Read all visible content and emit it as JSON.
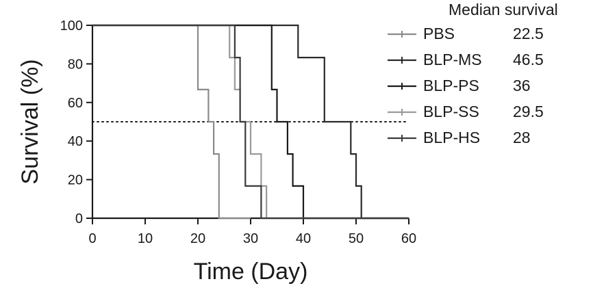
{
  "chart_data": {
    "type": "line",
    "xlabel": "Time (Day)",
    "ylabel": "Survival (%)",
    "xlim": [
      0,
      60
    ],
    "ylim": [
      0,
      100
    ],
    "xticks": [
      0,
      10,
      20,
      30,
      40,
      50,
      60
    ],
    "yticks": [
      0,
      20,
      40,
      60,
      80,
      100
    ],
    "xtick_labels": [
      "0",
      "10",
      "20",
      "30",
      "40",
      "50",
      "60"
    ],
    "ytick_labels": [
      "0",
      "20",
      "40",
      "60",
      "80",
      "100"
    ],
    "reference_line": {
      "y": 50,
      "style": "dotted",
      "x_end": 60
    },
    "legend": {
      "title": "Median survival",
      "placement": "right"
    },
    "series": [
      {
        "name": "PBS",
        "median": "22.5",
        "color": "#8a8a8a",
        "steps": [
          [
            0,
            100
          ],
          [
            20,
            100
          ],
          [
            20,
            66.7
          ],
          [
            22,
            66.7
          ],
          [
            22,
            50
          ],
          [
            23,
            50
          ],
          [
            23,
            33.3
          ],
          [
            24,
            33.3
          ],
          [
            24,
            0
          ],
          [
            30,
            0
          ]
        ]
      },
      {
        "name": "BLP-MS",
        "median": "46.5",
        "color": "#2a2a2a",
        "steps": [
          [
            0,
            100
          ],
          [
            39,
            100
          ],
          [
            39,
            83.3
          ],
          [
            44,
            83.3
          ],
          [
            44,
            50
          ],
          [
            49,
            50
          ],
          [
            49,
            33.3
          ],
          [
            50,
            33.3
          ],
          [
            50,
            16.7
          ],
          [
            51,
            16.7
          ],
          [
            51,
            0
          ],
          [
            60,
            0
          ]
        ]
      },
      {
        "name": "BLP-PS",
        "median": "36",
        "color": "#1a1a1a",
        "steps": [
          [
            0,
            100
          ],
          [
            34,
            100
          ],
          [
            34,
            66.7
          ],
          [
            35,
            66.7
          ],
          [
            35,
            50
          ],
          [
            37,
            50
          ],
          [
            37,
            33.3
          ],
          [
            38,
            33.3
          ],
          [
            38,
            16.7
          ],
          [
            40,
            16.7
          ],
          [
            40,
            0
          ],
          [
            60,
            0
          ]
        ]
      },
      {
        "name": "BLP-SS",
        "median": "29.5",
        "color": "#9a9a9a",
        "steps": [
          [
            0,
            100
          ],
          [
            26,
            100
          ],
          [
            26,
            83.3
          ],
          [
            27,
            83.3
          ],
          [
            27,
            66.7
          ],
          [
            28,
            66.7
          ],
          [
            28,
            50
          ],
          [
            30,
            50
          ],
          [
            30,
            33.3
          ],
          [
            32,
            33.3
          ],
          [
            32,
            16.7
          ],
          [
            33,
            16.7
          ],
          [
            33,
            0
          ],
          [
            60,
            0
          ]
        ]
      },
      {
        "name": "BLP-HS",
        "median": "28",
        "color": "#3a3a3a",
        "steps": [
          [
            0,
            100
          ],
          [
            27,
            100
          ],
          [
            27,
            83.3
          ],
          [
            28,
            83.3
          ],
          [
            28,
            50
          ],
          [
            29,
            50
          ],
          [
            29,
            16.7
          ],
          [
            32,
            16.7
          ],
          [
            32,
            0
          ],
          [
            60,
            0
          ]
        ]
      }
    ]
  }
}
